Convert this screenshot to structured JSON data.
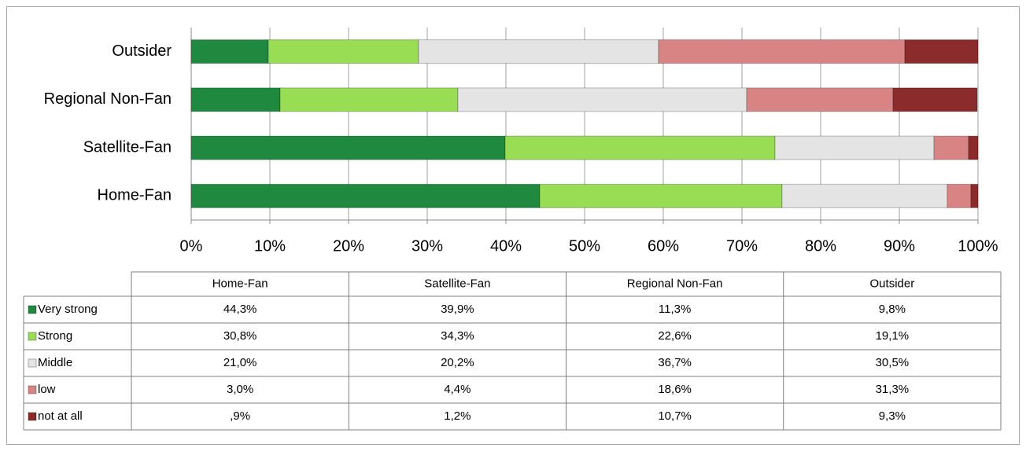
{
  "chart_data": {
    "type": "bar",
    "orientation": "horizontal",
    "stacked": true,
    "categories": [
      "Home-Fan",
      "Satellite-Fan",
      "Regional Non-Fan",
      "Outsider"
    ],
    "series": [
      {
        "name": "Very strong",
        "color": "#1f8a3f",
        "values": [
          44.3,
          39.9,
          11.3,
          9.8
        ],
        "value_labels": [
          "44,3%",
          "39,9%",
          "11,3%",
          "9,8%"
        ]
      },
      {
        "name": "Strong",
        "color": "#99dd55",
        "values": [
          30.8,
          34.3,
          22.6,
          19.1
        ],
        "value_labels": [
          "30,8%",
          "34,3%",
          "22,6%",
          "19,1%"
        ]
      },
      {
        "name": "Middle",
        "color": "#e4e4e4",
        "values": [
          21.0,
          20.2,
          36.7,
          30.5
        ],
        "value_labels": [
          "21,0%",
          "20,2%",
          "36,7%",
          "30,5%"
        ]
      },
      {
        "name": "low",
        "color": "#d98484",
        "values": [
          3.0,
          4.4,
          18.6,
          31.3
        ],
        "value_labels": [
          "3,0%",
          "4,4%",
          "18,6%",
          "31,3%"
        ]
      },
      {
        "name": "not at all",
        "color": "#8c2b2b",
        "values": [
          0.9,
          1.2,
          10.7,
          9.3
        ],
        "value_labels": [
          ",9%",
          "1,2%",
          "10,7%",
          "9,3%"
        ]
      }
    ],
    "xlim": [
      0,
      100
    ],
    "xticks": [
      {
        "value": 0,
        "label": "0%"
      },
      {
        "value": 10,
        "label": "10%"
      },
      {
        "value": 20,
        "label": "20%"
      },
      {
        "value": 30,
        "label": "30%"
      },
      {
        "value": 40,
        "label": "40%"
      },
      {
        "value": 50,
        "label": "50%"
      },
      {
        "value": 60,
        "label": "60%"
      },
      {
        "value": 70,
        "label": "70%"
      },
      {
        "value": 80,
        "label": "80%"
      },
      {
        "value": 90,
        "label": "90%"
      },
      {
        "value": 100,
        "label": "100%"
      }
    ],
    "grid": true,
    "data_table": true
  }
}
